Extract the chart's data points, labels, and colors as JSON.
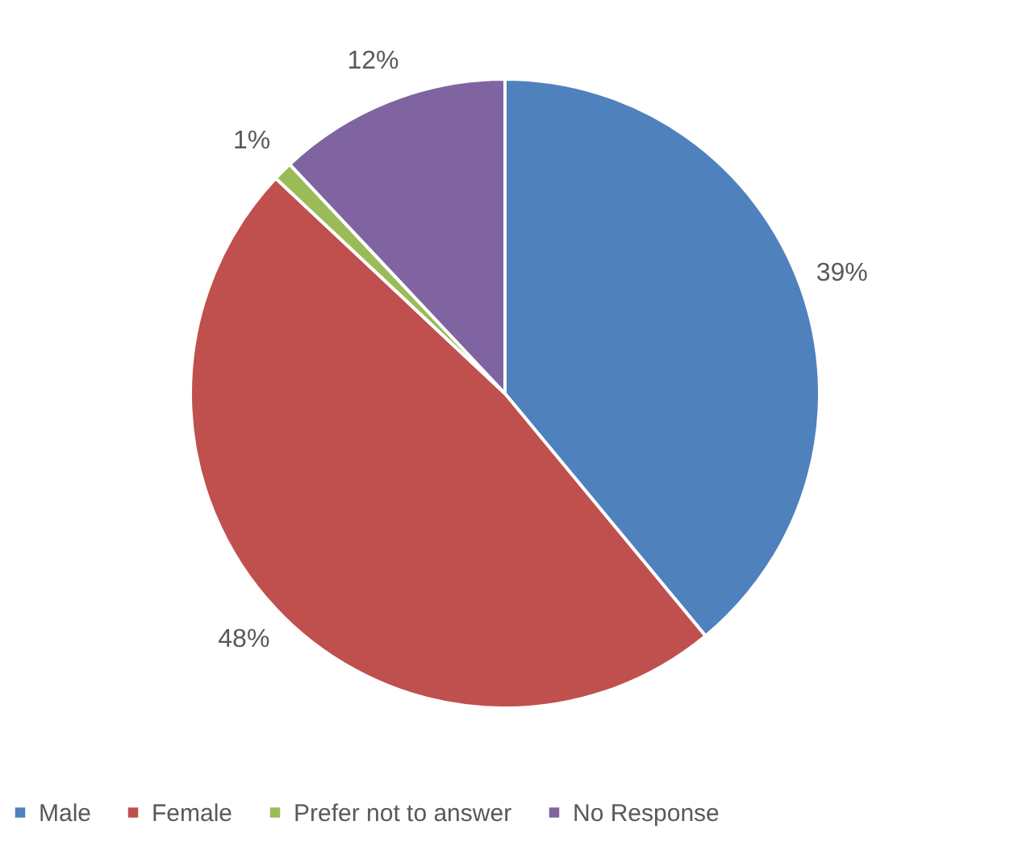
{
  "chart_data": {
    "type": "pie",
    "categories": [
      "Male",
      "Female",
      "Prefer not to answer",
      "No Response"
    ],
    "values": [
      39,
      48,
      1,
      12
    ],
    "colors": [
      "#4f81bd",
      "#c0504d",
      "#9bbb59",
      "#8064a2"
    ],
    "value_labels": [
      "39%",
      "48%",
      "1%",
      "12%"
    ],
    "legend": "bottom"
  }
}
